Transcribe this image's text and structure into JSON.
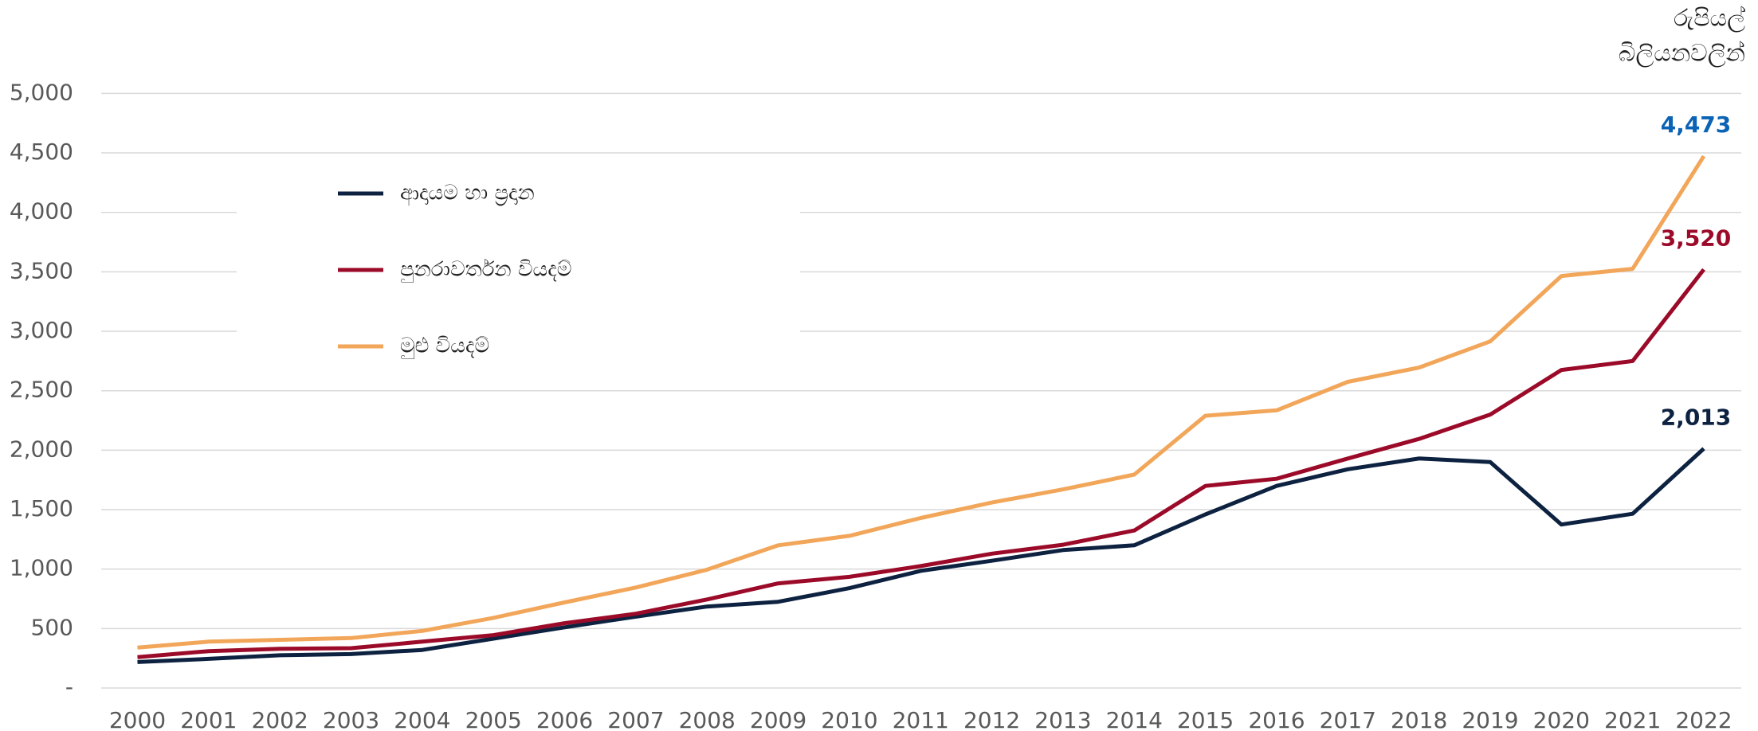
{
  "chart_data": {
    "type": "line",
    "unit_label": [
      "රුපියල්",
      "බිලියනවලින්"
    ],
    "x": [
      2000,
      2001,
      2002,
      2003,
      2004,
      2005,
      2006,
      2007,
      2008,
      2009,
      2010,
      2011,
      2012,
      2013,
      2014,
      2015,
      2016,
      2017,
      2018,
      2019,
      2020,
      2021,
      2022
    ],
    "xlim": [
      2000,
      2022
    ],
    "xticks": [
      2000,
      2001,
      2002,
      2003,
      2004,
      2005,
      2006,
      2007,
      2008,
      2009,
      2010,
      2011,
      2012,
      2013,
      2014,
      2015,
      2016,
      2017,
      2018,
      2019,
      2020,
      2021,
      2022
    ],
    "ylim": [
      0,
      5000
    ],
    "yticks": [
      {
        "value": 0,
        "label": "-"
      },
      500,
      {
        "value": 1000,
        "label": "1,000"
      },
      {
        "value": 1500,
        "label": "1,500"
      },
      {
        "value": 2000,
        "label": "2,000"
      },
      {
        "value": 2500,
        "label": "2,500"
      },
      {
        "value": 3000,
        "label": "3,000"
      },
      {
        "value": 3500,
        "label": "3,500"
      },
      {
        "value": 4000,
        "label": "4,000"
      },
      {
        "value": 4500,
        "label": "4,500"
      },
      {
        "value": 5000,
        "label": "5,000"
      }
    ],
    "grid": true,
    "legend": "upper left",
    "series": [
      {
        "name": "ආදායම හා ප්‍රදාන",
        "color": "#0d2240",
        "label_color": "#0d2240",
        "values": [
          218,
          245,
          275,
          285,
          320,
          415,
          510,
          600,
          685,
          725,
          840,
          985,
          1070,
          1160,
          1200,
          1460,
          1700,
          1840,
          1930,
          1900,
          1375,
          1465,
          2013
        ],
        "value_labels": [
          null,
          null,
          null,
          null,
          null,
          null,
          null,
          null,
          null,
          null,
          null,
          null,
          null,
          null,
          null,
          null,
          null,
          null,
          null,
          null,
          null,
          null,
          "2,013"
        ]
      },
      {
        "name": "පුනරාවර්තන වියදම්",
        "color": "#9b0a28",
        "label_color": "#9b0a28",
        "values": [
          260,
          310,
          330,
          335,
          390,
          445,
          545,
          625,
          745,
          880,
          935,
          1025,
          1130,
          1205,
          1325,
          1700,
          1760,
          1930,
          2095,
          2300,
          2675,
          2750,
          3520
        ],
        "value_labels": [
          null,
          null,
          null,
          null,
          null,
          null,
          null,
          null,
          null,
          null,
          null,
          null,
          null,
          null,
          null,
          null,
          null,
          null,
          null,
          null,
          null,
          null,
          "3,520"
        ]
      },
      {
        "name": "මුළු වියදම්",
        "color": "#f2a65a",
        "label_color": "#0b63b5",
        "values": [
          340,
          390,
          405,
          420,
          480,
          590,
          720,
          845,
          995,
          1200,
          1280,
          1430,
          1560,
          1670,
          1795,
          2290,
          2335,
          2575,
          2695,
          2915,
          3465,
          3525,
          4473
        ],
        "value_labels": [
          null,
          null,
          null,
          null,
          null,
          null,
          null,
          null,
          null,
          null,
          null,
          null,
          null,
          null,
          null,
          null,
          null,
          null,
          null,
          null,
          null,
          null,
          "4,473"
        ]
      }
    ]
  }
}
